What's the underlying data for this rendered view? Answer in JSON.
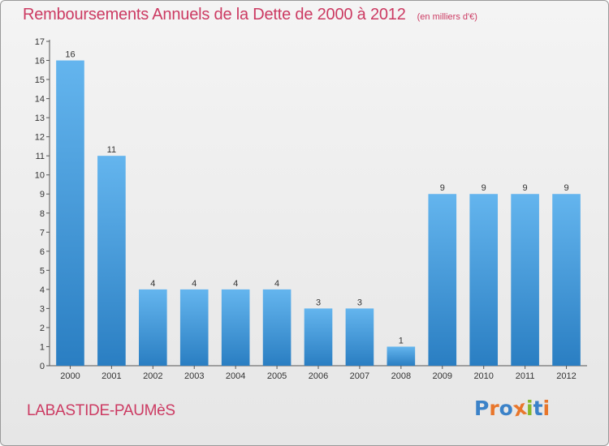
{
  "title": "Remboursements Annuels de la Dette de 2000 à 2012",
  "unit": "(en milliers d'€)",
  "commune": "LABASTIDE-PAUMèS",
  "logo": {
    "text": "Proxiti",
    "letters": [
      {
        "ch": "P",
        "color": "#3b82c8"
      },
      {
        "ch": "r",
        "color": "#e8762b"
      },
      {
        "ch": "o",
        "color": "#3b82c8"
      },
      {
        "ch": "x",
        "color": "#e8762b"
      },
      {
        "ch": "i",
        "color": "#86b82a"
      },
      {
        "ch": "t",
        "color": "#3b82c8"
      },
      {
        "ch": "i",
        "color": "#e8762b"
      }
    ]
  },
  "colors": {
    "bar_light": "#64b5ee",
    "bar_dark": "#2a7ec2",
    "title": "#cc3a62"
  },
  "chart_data": {
    "type": "bar",
    "categories": [
      "2000",
      "2001",
      "2002",
      "2003",
      "2004",
      "2005",
      "2006",
      "2007",
      "2008",
      "2009",
      "2010",
      "2011",
      "2012"
    ],
    "values": [
      16,
      11,
      4,
      4,
      4,
      4,
      3,
      3,
      1,
      9,
      9,
      9,
      9
    ],
    "ylim": [
      0,
      17
    ],
    "yticks": [
      0,
      1,
      2,
      3,
      4,
      5,
      6,
      7,
      8,
      9,
      10,
      11,
      12,
      13,
      14,
      15,
      16,
      17
    ],
    "grid": false,
    "legend": "none"
  }
}
